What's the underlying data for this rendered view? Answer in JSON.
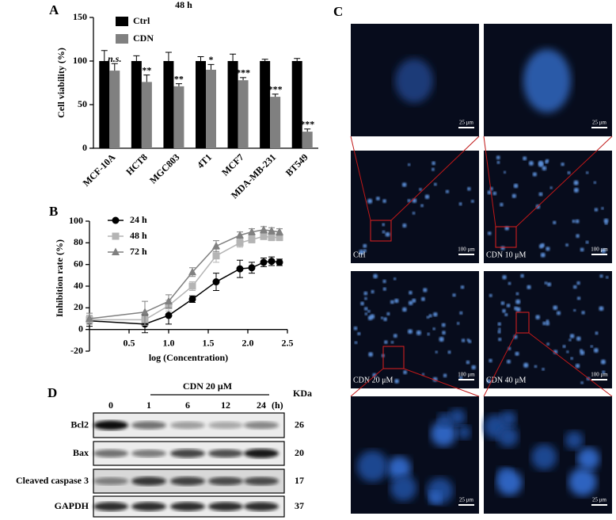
{
  "chart_data": [
    {
      "type": "bar",
      "panel_label": "A",
      "title": "48 h",
      "ylabel": "Cell viability (%)",
      "categories": [
        "MCF-10A",
        "HCT8",
        "MGC803",
        "4T1",
        "MCF7",
        "MDA-MB-231",
        "BT549"
      ],
      "series": [
        {
          "name": "Ctrl",
          "color": "#000000",
          "values": [
            100,
            100,
            100,
            100,
            100,
            100,
            100
          ],
          "errors": [
            12,
            6,
            10,
            5,
            8,
            2,
            3
          ]
        },
        {
          "name": "CDN",
          "color": "#808080",
          "values": [
            89,
            76,
            71,
            90,
            78,
            59,
            19
          ],
          "errors": [
            8,
            8,
            3,
            6,
            3,
            3,
            3
          ],
          "annotations": [
            "n.s.",
            "**",
            "**",
            "*",
            "***",
            "***",
            "***"
          ]
        }
      ],
      "ylim": [
        0,
        150
      ],
      "yticks": [
        0,
        50,
        100,
        150
      ],
      "legend": "upper left"
    },
    {
      "type": "scatter",
      "panel_label": "B",
      "xlabel": "log (Concentration)",
      "ylabel": "Inhibition rate (%)",
      "x": [
        0,
        0.7,
        1,
        1.3,
        1.6,
        1.9,
        2.05,
        2.2,
        2.3,
        2.4
      ],
      "series": [
        {
          "name": "24 h",
          "color": "#000000",
          "marker": "circle",
          "values": [
            8,
            5,
            13,
            28,
            44,
            56,
            57,
            62,
            63,
            62
          ],
          "errors": [
            5,
            8,
            8,
            3,
            8,
            8,
            5,
            4,
            4,
            3
          ]
        },
        {
          "name": "48 h",
          "color": "#b4b4b4",
          "marker": "square",
          "values": [
            9,
            9,
            22,
            40,
            68,
            80,
            83,
            86,
            85,
            85
          ],
          "errors": [
            4,
            5,
            5,
            4,
            6,
            4,
            3,
            3,
            3,
            3
          ]
        },
        {
          "name": "72 h",
          "color": "#808080",
          "marker": "triangle",
          "values": [
            10,
            16,
            26,
            53,
            77,
            87,
            90,
            92,
            91,
            90
          ],
          "errors": [
            5,
            10,
            6,
            4,
            5,
            3,
            3,
            3,
            3,
            3
          ]
        }
      ],
      "xlim": [
        0,
        2.5
      ],
      "xticks": [
        0.5,
        {
          "value": 1,
          "label": "1.0"
        },
        1.5,
        {
          "value": 2,
          "label": "2.0"
        },
        2.5
      ],
      "ylim": [
        -20,
        100
      ],
      "yticks": [
        -20,
        0,
        20,
        40,
        60,
        80,
        100
      ],
      "legend": "upper left"
    }
  ],
  "panel_c": {
    "label": "C",
    "conditions": [
      "Ctrl",
      "CDN 10 μM",
      "CDN 20 μM",
      "CDN 40 μM"
    ],
    "scale_small": "25 μm",
    "scale_large": "100 μm"
  },
  "panel_d": {
    "label": "D",
    "treatment": "CDN 20 μM",
    "times": [
      "0",
      "1",
      "6",
      "12",
      "24"
    ],
    "time_unit": "(h)",
    "mw_header": "KDa",
    "rows": [
      {
        "protein": "Bcl2",
        "kda": 26
      },
      {
        "protein": "Bax",
        "kda": 20
      },
      {
        "protein": "Cleaved caspase 3",
        "kda": 17
      },
      {
        "protein": "GAPDH",
        "kda": 37
      }
    ]
  }
}
